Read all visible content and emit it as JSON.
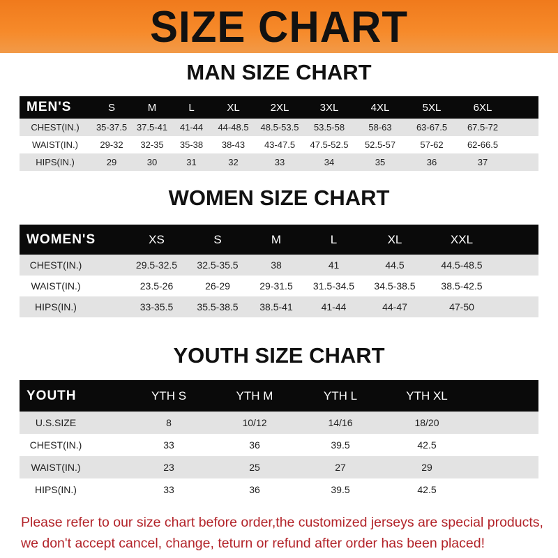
{
  "banner": {
    "title": "SIZE CHART"
  },
  "men": {
    "title": "MAN SIZE CHART",
    "header": "MEN'S",
    "sizes": [
      "S",
      "M",
      "L",
      "XL",
      "2XL",
      "3XL",
      "4XL",
      "5XL",
      "6XL"
    ],
    "rows": [
      {
        "label": "CHEST(IN.)",
        "values": [
          "35-37.5",
          "37.5-41",
          "41-44",
          "44-48.5",
          "48.5-53.5",
          "53.5-58",
          "58-63",
          "63-67.5",
          "67.5-72"
        ]
      },
      {
        "label": "WAIST(IN.)",
        "values": [
          "29-32",
          "32-35",
          "35-38",
          "38-43",
          "43-47.5",
          "47.5-52.5",
          "52.5-57",
          "57-62",
          "62-66.5"
        ]
      },
      {
        "label": "HIPS(IN.)",
        "values": [
          "29",
          "30",
          "31",
          "32",
          "33",
          "34",
          "35",
          "36",
          "37"
        ]
      }
    ]
  },
  "women": {
    "title": "WOMEN SIZE CHART",
    "header": "WOMEN'S",
    "sizes": [
      "XS",
      "S",
      "M",
      "L",
      "XL",
      "XXL"
    ],
    "rows": [
      {
        "label": "CHEST(IN.)",
        "values": [
          "29.5-32.5",
          "32.5-35.5",
          "38",
          "41",
          "44.5",
          "44.5-48.5"
        ]
      },
      {
        "label": "WAIST(IN.)",
        "values": [
          "23.5-26",
          "26-29",
          "29-31.5",
          "31.5-34.5",
          "34.5-38.5",
          "38.5-42.5"
        ]
      },
      {
        "label": "HIPS(IN.)",
        "values": [
          "33-35.5",
          "35.5-38.5",
          "38.5-41",
          "41-44",
          "44-47",
          "47-50"
        ]
      }
    ]
  },
  "youth": {
    "title": "YOUTH SIZE CHART",
    "header": "YOUTH",
    "sizes": [
      "YTH S",
      "YTH M",
      "YTH L",
      "YTH XL"
    ],
    "rows": [
      {
        "label": "U.S.SIZE",
        "values": [
          "8",
          "10/12",
          "14/16",
          "18/20"
        ]
      },
      {
        "label": "CHEST(IN.)",
        "values": [
          "33",
          "36",
          "39.5",
          "42.5"
        ]
      },
      {
        "label": "WAIST(IN.)",
        "values": [
          "23",
          "25",
          "27",
          "29"
        ]
      },
      {
        "label": "HIPS(IN.)",
        "values": [
          "33",
          "36",
          "39.5",
          "42.5"
        ]
      }
    ]
  },
  "footer": {
    "line1": "Please refer to our size chart before order,the customized jerseys are special products,",
    "line2": "we don't accept cancel, change, teturn or refund after order has been placed!"
  },
  "colors": {
    "banner": "#f68a2a",
    "header_row": "#0a0a0a",
    "stripe": "#e3e3e3",
    "notice": "#b3242a"
  }
}
